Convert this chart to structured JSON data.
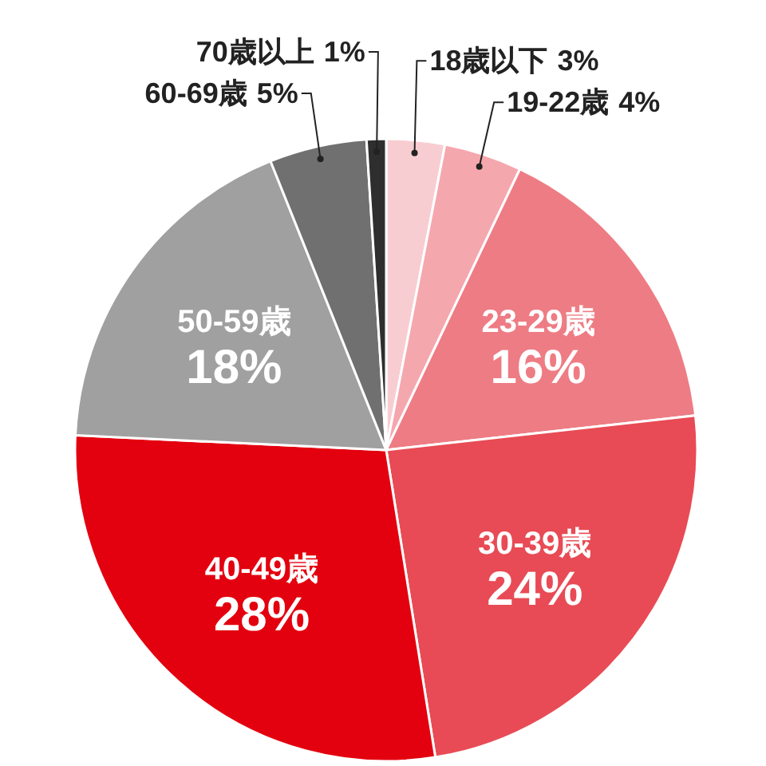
{
  "chart_data": {
    "type": "pie",
    "categories": [
      "18歳以下",
      "19-22歳",
      "23-29歳",
      "30-39歳",
      "40-49歳",
      "50-59歳",
      "60-69歳",
      "70歳以上"
    ],
    "values": [
      3,
      4,
      16,
      24,
      28,
      18,
      5,
      1
    ],
    "colors": [
      "#f8cdd1",
      "#f5a7ae",
      "#ee7c84",
      "#e84b55",
      "#e3000f",
      "#a0a0a0",
      "#707070",
      "#2e2e2e"
    ],
    "value_labels": [
      "3%",
      "4%",
      "16%",
      "24%",
      "28%",
      "18%",
      "5%",
      "1%"
    ],
    "legend": false
  }
}
